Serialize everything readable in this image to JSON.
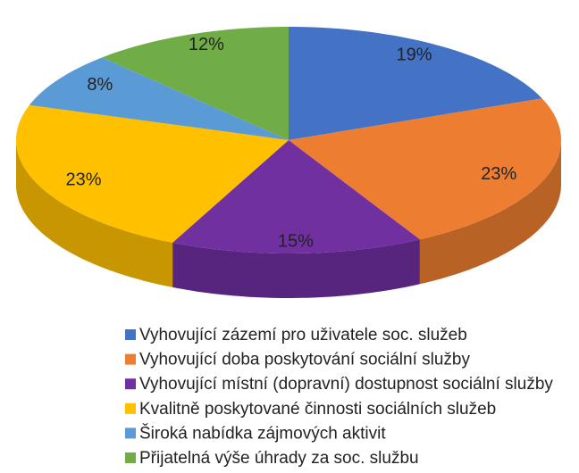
{
  "chart_data": {
    "type": "pie3d",
    "categories": [
      "Vyhovující zázemí pro uživatele soc. služeb",
      "Vyhovující doba poskytování sociální služby",
      "Vyhovující místní (dopravní) dostupnost sociální služby",
      "Kvalitně poskytované činnosti sociálních služeb",
      "Široká nabídka zájmových aktivit",
      "Přijatelná výše úhrady za soc. službu"
    ],
    "values": [
      19,
      23,
      15,
      23,
      8,
      12
    ],
    "value_labels": [
      "19%",
      "23%",
      "15%",
      "23%",
      "8%",
      "12%"
    ],
    "colors": [
      "#4472c4",
      "#ed7d31",
      "#7030a0",
      "#ffc000",
      "#5b9bd5",
      "#70ad47"
    ],
    "legend": "bottom"
  }
}
